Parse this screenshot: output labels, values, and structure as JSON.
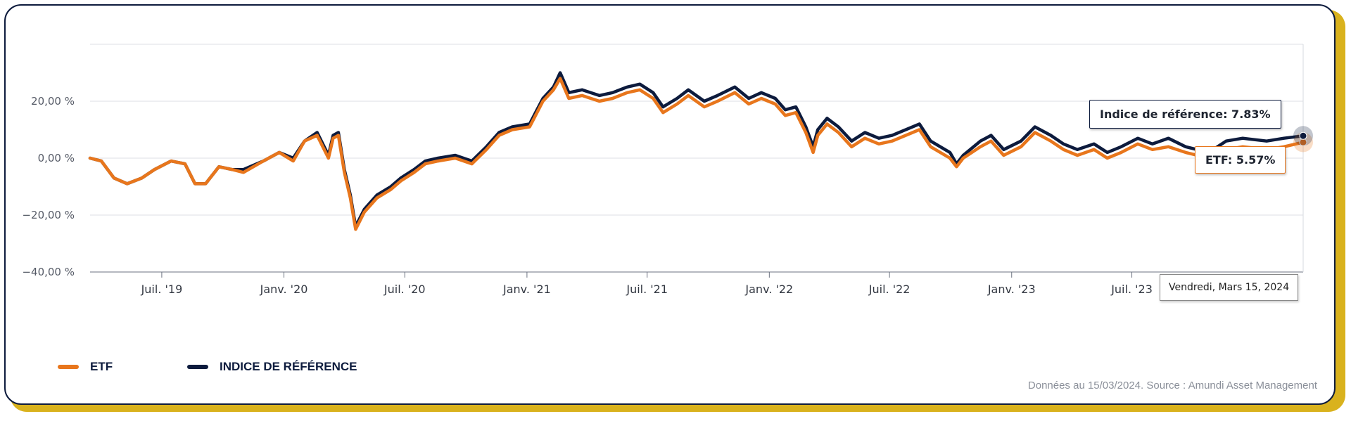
{
  "chart_data": {
    "type": "line",
    "y_ticks": [
      "20,00 %",
      "0,00 %",
      "−20,00 %",
      "−40,00 %"
    ],
    "y_tick_values": [
      20,
      0,
      -20,
      -40
    ],
    "ylim": [
      -40,
      40
    ],
    "x_ticks": [
      "Juil. '19",
      "Janv. '20",
      "Juil. '20",
      "Janv. '21",
      "Juil. '21",
      "Janv. '22",
      "Juil. '22",
      "Janv. '23",
      "Juil. '23"
    ],
    "x_tick_dates": [
      "2019-07-01",
      "2020-01-01",
      "2020-07-01",
      "2021-01-01",
      "2021-07-01",
      "2022-01-01",
      "2022-07-01",
      "2023-01-01",
      "2023-07-01"
    ],
    "xlim": [
      "2019-03-15",
      "2024-03-15"
    ],
    "grid": true,
    "legend_position": "bottom-left",
    "series": [
      {
        "name": "ETF",
        "color": "#e8761c",
        "points": [
          [
            "2019-03-15",
            0
          ],
          [
            "2019-04-01",
            -1
          ],
          [
            "2019-04-20",
            -7
          ],
          [
            "2019-05-10",
            -9
          ],
          [
            "2019-06-01",
            -7
          ],
          [
            "2019-06-20",
            -4
          ],
          [
            "2019-07-15",
            -1
          ],
          [
            "2019-08-05",
            -2
          ],
          [
            "2019-08-20",
            -9
          ],
          [
            "2019-09-05",
            -9
          ],
          [
            "2019-09-25",
            -3
          ],
          [
            "2019-10-15",
            -4
          ],
          [
            "2019-11-01",
            -5
          ],
          [
            "2019-12-01",
            -1
          ],
          [
            "2019-12-25",
            2
          ],
          [
            "2020-01-15",
            -1
          ],
          [
            "2020-02-01",
            6
          ],
          [
            "2020-02-20",
            8
          ],
          [
            "2020-03-08",
            0
          ],
          [
            "2020-03-15",
            7
          ],
          [
            "2020-03-23",
            8
          ],
          [
            "2020-04-01",
            -5
          ],
          [
            "2020-04-10",
            -14
          ],
          [
            "2020-04-18",
            -25
          ],
          [
            "2020-05-01",
            -19
          ],
          [
            "2020-05-20",
            -14
          ],
          [
            "2020-06-10",
            -11
          ],
          [
            "2020-06-25",
            -8
          ],
          [
            "2020-07-15",
            -5
          ],
          [
            "2020-08-01",
            -2
          ],
          [
            "2020-08-20",
            -1
          ],
          [
            "2020-09-15",
            0
          ],
          [
            "2020-10-10",
            -2
          ],
          [
            "2020-11-01",
            3
          ],
          [
            "2020-11-20",
            8
          ],
          [
            "2020-12-10",
            10
          ],
          [
            "2021-01-05",
            11
          ],
          [
            "2021-01-25",
            20
          ],
          [
            "2021-02-10",
            24
          ],
          [
            "2021-02-20",
            28
          ],
          [
            "2021-03-05",
            21
          ],
          [
            "2021-03-25",
            22
          ],
          [
            "2021-04-20",
            20
          ],
          [
            "2021-05-10",
            21
          ],
          [
            "2021-06-01",
            23
          ],
          [
            "2021-06-20",
            24
          ],
          [
            "2021-07-10",
            21
          ],
          [
            "2021-07-25",
            16
          ],
          [
            "2021-08-15",
            19
          ],
          [
            "2021-09-01",
            22
          ],
          [
            "2021-09-25",
            18
          ],
          [
            "2021-10-15",
            20
          ],
          [
            "2021-11-10",
            23
          ],
          [
            "2021-12-01",
            19
          ],
          [
            "2021-12-20",
            21
          ],
          [
            "2022-01-10",
            19
          ],
          [
            "2022-01-25",
            15
          ],
          [
            "2022-02-10",
            16
          ],
          [
            "2022-02-25",
            9
          ],
          [
            "2022-03-08",
            2
          ],
          [
            "2022-03-15",
            8
          ],
          [
            "2022-03-29",
            12
          ],
          [
            "2022-04-15",
            9
          ],
          [
            "2022-05-05",
            4
          ],
          [
            "2022-05-25",
            7
          ],
          [
            "2022-06-15",
            5
          ],
          [
            "2022-07-05",
            6
          ],
          [
            "2022-08-15",
            10
          ],
          [
            "2022-09-01",
            4
          ],
          [
            "2022-09-30",
            0
          ],
          [
            "2022-10-10",
            -3
          ],
          [
            "2022-10-20",
            0
          ],
          [
            "2022-11-15",
            4
          ],
          [
            "2022-12-01",
            6
          ],
          [
            "2022-12-20",
            1
          ],
          [
            "2023-01-15",
            4
          ],
          [
            "2023-02-05",
            9
          ],
          [
            "2023-03-01",
            6
          ],
          [
            "2023-03-20",
            3
          ],
          [
            "2023-04-10",
            1
          ],
          [
            "2023-05-05",
            3
          ],
          [
            "2023-05-25",
            0
          ],
          [
            "2023-06-15",
            2
          ],
          [
            "2023-07-10",
            5
          ],
          [
            "2023-08-01",
            3
          ],
          [
            "2023-08-25",
            4
          ],
          [
            "2023-09-20",
            2
          ],
          [
            "2023-10-25",
            0
          ],
          [
            "2023-11-20",
            3
          ],
          [
            "2023-12-15",
            4
          ],
          [
            "2024-01-20",
            3
          ],
          [
            "2024-02-15",
            4
          ],
          [
            "2024-03-15",
            5.57
          ]
        ]
      },
      {
        "name": "INDICE DE RÉFÉRENCE",
        "color": "#0d1b3d",
        "points": [
          [
            "2019-03-15",
            0
          ],
          [
            "2019-04-01",
            -1
          ],
          [
            "2019-04-20",
            -7
          ],
          [
            "2019-05-10",
            -9
          ],
          [
            "2019-06-01",
            -7
          ],
          [
            "2019-06-20",
            -4
          ],
          [
            "2019-07-15",
            -1
          ],
          [
            "2019-08-05",
            -2
          ],
          [
            "2019-08-20",
            -9
          ],
          [
            "2019-09-05",
            -9
          ],
          [
            "2019-09-25",
            -3
          ],
          [
            "2019-10-15",
            -4
          ],
          [
            "2019-11-01",
            -4
          ],
          [
            "2019-12-01",
            -1
          ],
          [
            "2019-12-25",
            2
          ],
          [
            "2020-01-15",
            0
          ],
          [
            "2020-02-01",
            6
          ],
          [
            "2020-02-20",
            9
          ],
          [
            "2020-03-08",
            1
          ],
          [
            "2020-03-15",
            8
          ],
          [
            "2020-03-23",
            9
          ],
          [
            "2020-04-01",
            -4
          ],
          [
            "2020-04-10",
            -13
          ],
          [
            "2020-04-18",
            -24
          ],
          [
            "2020-05-01",
            -18
          ],
          [
            "2020-05-20",
            -13
          ],
          [
            "2020-06-10",
            -10
          ],
          [
            "2020-06-25",
            -7
          ],
          [
            "2020-07-15",
            -4
          ],
          [
            "2020-08-01",
            -1
          ],
          [
            "2020-08-20",
            0
          ],
          [
            "2020-09-15",
            1
          ],
          [
            "2020-10-10",
            -1
          ],
          [
            "2020-11-01",
            4
          ],
          [
            "2020-11-20",
            9
          ],
          [
            "2020-12-10",
            11
          ],
          [
            "2021-01-05",
            12
          ],
          [
            "2021-01-25",
            21
          ],
          [
            "2021-02-10",
            25
          ],
          [
            "2021-02-20",
            30
          ],
          [
            "2021-03-05",
            23
          ],
          [
            "2021-03-25",
            24
          ],
          [
            "2021-04-20",
            22
          ],
          [
            "2021-05-10",
            23
          ],
          [
            "2021-06-01",
            25
          ],
          [
            "2021-06-20",
            26
          ],
          [
            "2021-07-10",
            23
          ],
          [
            "2021-07-25",
            18
          ],
          [
            "2021-08-15",
            21
          ],
          [
            "2021-09-01",
            24
          ],
          [
            "2021-09-25",
            20
          ],
          [
            "2021-10-15",
            22
          ],
          [
            "2021-11-10",
            25
          ],
          [
            "2021-12-01",
            21
          ],
          [
            "2021-12-20",
            23
          ],
          [
            "2022-01-10",
            21
          ],
          [
            "2022-01-25",
            17
          ],
          [
            "2022-02-10",
            18
          ],
          [
            "2022-02-25",
            11
          ],
          [
            "2022-03-08",
            4
          ],
          [
            "2022-03-15",
            10
          ],
          [
            "2022-03-29",
            14
          ],
          [
            "2022-04-15",
            11
          ],
          [
            "2022-05-05",
            6
          ],
          [
            "2022-05-25",
            9
          ],
          [
            "2022-06-15",
            7
          ],
          [
            "2022-07-05",
            8
          ],
          [
            "2022-08-15",
            12
          ],
          [
            "2022-09-01",
            6
          ],
          [
            "2022-09-30",
            2
          ],
          [
            "2022-10-10",
            -2
          ],
          [
            "2022-10-20",
            1
          ],
          [
            "2022-11-15",
            6
          ],
          [
            "2022-12-01",
            8
          ],
          [
            "2022-12-20",
            3
          ],
          [
            "2023-01-15",
            6
          ],
          [
            "2023-02-05",
            11
          ],
          [
            "2023-03-01",
            8
          ],
          [
            "2023-03-20",
            5
          ],
          [
            "2023-04-10",
            3
          ],
          [
            "2023-05-05",
            5
          ],
          [
            "2023-05-25",
            2
          ],
          [
            "2023-06-15",
            4
          ],
          [
            "2023-07-10",
            7
          ],
          [
            "2023-08-01",
            5
          ],
          [
            "2023-08-25",
            7
          ],
          [
            "2023-09-20",
            4
          ],
          [
            "2023-10-25",
            2
          ],
          [
            "2023-11-20",
            6
          ],
          [
            "2023-12-15",
            7
          ],
          [
            "2024-01-20",
            6
          ],
          [
            "2024-02-15",
            7
          ],
          [
            "2024-03-15",
            7.83
          ]
        ]
      }
    ]
  },
  "tooltips": {
    "index": "Indice de référence: 7.83%",
    "etf": "ETF: 5.57%",
    "date": "Vendredi, Mars 15, 2024"
  },
  "legend": {
    "etf_label": "ETF",
    "index_label": "INDICE DE RÉFÉRENCE"
  },
  "footer": {
    "source": "Données au 15/03/2024. Source : Amundi Asset Management"
  }
}
